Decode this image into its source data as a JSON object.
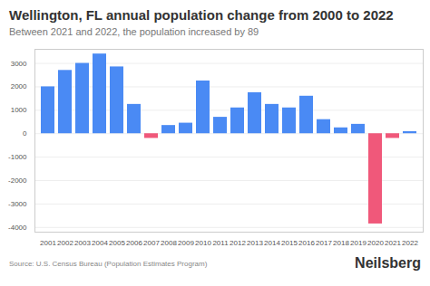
{
  "chart_data": {
    "type": "bar",
    "title": "Wellington, FL annual population change from 2000 to 2022",
    "subtitle": "Between 2021 and 2022, the population increased by 89",
    "source": "Source: U.S. Census Bureau (Population Estimates Program)",
    "logo": "Neilsberg",
    "categories": [
      "2001",
      "2002",
      "2003",
      "2004",
      "2005",
      "2006",
      "2007",
      "2008",
      "2009",
      "2010",
      "2011",
      "2012",
      "2013",
      "2014",
      "2015",
      "2016",
      "2017",
      "2018",
      "2019",
      "2020",
      "2021",
      "2022"
    ],
    "values": [
      2000,
      2700,
      3000,
      3400,
      2850,
      1250,
      -200,
      350,
      450,
      2250,
      700,
      1100,
      1750,
      1250,
      1100,
      1600,
      600,
      250,
      400,
      -3850,
      -200,
      89
    ],
    "colors": [
      "#4a8af4",
      "#4a8af4",
      "#4a8af4",
      "#4a8af4",
      "#4a8af4",
      "#4a8af4",
      "#f0587a",
      "#4a8af4",
      "#4a8af4",
      "#4a8af4",
      "#4a8af4",
      "#4a8af4",
      "#4a8af4",
      "#4a8af4",
      "#4a8af4",
      "#4a8af4",
      "#4a8af4",
      "#4a8af4",
      "#4a8af4",
      "#f0587a",
      "#f0587a",
      "#4a8af4"
    ],
    "ylim": [
      -4200,
      3600
    ],
    "yticks": [
      -4000,
      -3000,
      -2000,
      -1000,
      0,
      1000,
      2000,
      3000
    ],
    "grid": true
  }
}
